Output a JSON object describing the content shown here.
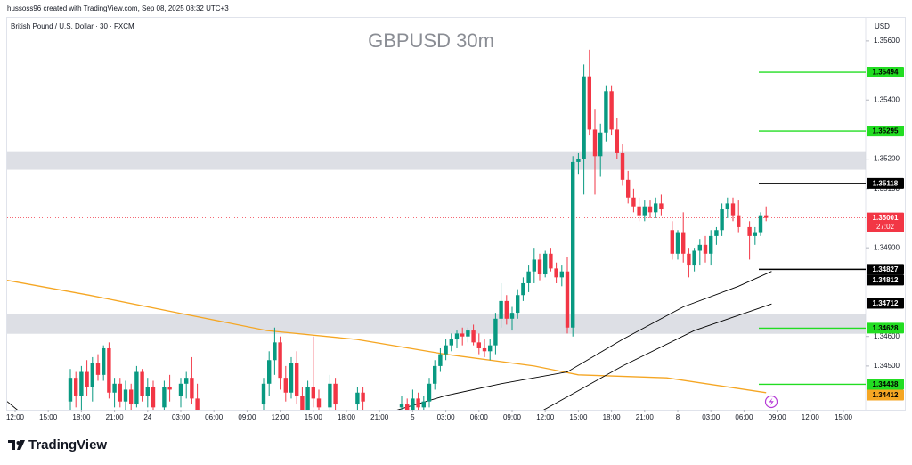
{
  "chart_data": {
    "type": "candlestick",
    "header": "hussoss96 created with TradingView.com, Sep 08, 2025 08:32 UTC+3",
    "subtitle": "British Pound / U.S. Dollar · 30 · FXCM",
    "title": "GBPUSD 30m",
    "currency": "USD",
    "brand": "TradingView",
    "up_color": "#089981",
    "down_color": "#f23645",
    "xlim": [
      -1.45,
      154.03
    ],
    "ylim": [
      1.34352,
      1.35678
    ],
    "yticks": [
      {
        "value": 1.356,
        "label": "1.35600"
      },
      {
        "value": 1.354,
        "label": "1.35400"
      },
      {
        "value": 1.352,
        "label": "1.35200"
      },
      {
        "value": 1.351,
        "label": "1.35100"
      },
      {
        "value": 1.349,
        "label": "1.34900"
      },
      {
        "value": 1.346,
        "label": "1.34600"
      },
      {
        "value": 1.345,
        "label": "1.34500"
      }
    ],
    "xticks": [
      {
        "value": 0,
        "label": "12:00"
      },
      {
        "value": 6,
        "label": "15:00"
      },
      {
        "value": 12,
        "label": "18:00"
      },
      {
        "value": 18,
        "label": "21:00"
      },
      24,
      {
        "value": 30,
        "label": "03:00"
      },
      {
        "value": 36,
        "label": "06:00"
      },
      {
        "value": 42,
        "label": "09:00"
      },
      {
        "value": 48,
        "label": "12:00"
      },
      {
        "value": 54,
        "label": "15:00"
      },
      {
        "value": 60,
        "label": "18:00"
      },
      {
        "value": 66,
        "label": "21:00"
      },
      {
        "value": 72,
        "label": "5"
      },
      {
        "value": 78,
        "label": "03:00"
      },
      {
        "value": 84,
        "label": "06:00"
      },
      {
        "value": 90,
        "label": "09:00"
      },
      {
        "value": 96,
        "label": "12:00"
      },
      {
        "value": 102,
        "label": "15:00"
      },
      {
        "value": 108,
        "label": "18:00"
      },
      {
        "value": 114,
        "label": "21:00"
      },
      {
        "value": 120,
        "label": "8"
      },
      {
        "value": 126,
        "label": "03:00"
      },
      {
        "value": 132,
        "label": "06:00"
      },
      {
        "value": 138,
        "label": "09:00"
      },
      {
        "value": 144,
        "label": "12:00"
      },
      {
        "value": 150,
        "label": "15:00"
      }
    ],
    "x": [
      10,
      11,
      12,
      13,
      14,
      15,
      16,
      17,
      18,
      19,
      20,
      21,
      22,
      23,
      24,
      25,
      27,
      28,
      30,
      31,
      32,
      33,
      45,
      46,
      47,
      48,
      49,
      50,
      51,
      52,
      53,
      54,
      55,
      57,
      58,
      62,
      63,
      70,
      71,
      72,
      73,
      74,
      75,
      76,
      77,
      78,
      79,
      80,
      81,
      82,
      83,
      84,
      85,
      86,
      87,
      88,
      89,
      90,
      91,
      92,
      93,
      94,
      95,
      96,
      97,
      98,
      99,
      100,
      101,
      102,
      103,
      104,
      105,
      106,
      107,
      108,
      109,
      110,
      111,
      112,
      113,
      114,
      115,
      116,
      117,
      119,
      120,
      121,
      122,
      123,
      124,
      125,
      126,
      127,
      128,
      129,
      130,
      131,
      133,
      134,
      135,
      136
    ],
    "open": [
      1.3438,
      1.3446,
      1.344,
      1.3448,
      1.3443,
      1.3451,
      1.3447,
      1.3456,
      1.3441,
      1.3444,
      1.3438,
      1.3442,
      1.3437,
      1.3448,
      1.344,
      1.3443,
      1.3436,
      1.3443,
      1.344,
      1.3444,
      1.3446,
      1.3439,
      1.3437,
      1.3444,
      1.3452,
      1.3458,
      1.3446,
      1.3441,
      1.3451,
      1.344,
      1.3435,
      1.3443,
      1.3439,
      1.3436,
      1.3444,
      1.3437,
      1.3441,
      1.3436,
      1.3437,
      1.3435,
      1.3439,
      1.3436,
      1.3438,
      1.3444,
      1.345,
      1.3454,
      1.3457,
      1.3459,
      1.3461,
      1.346,
      1.3462,
      1.3458,
      1.3456,
      1.3455,
      1.3457,
      1.3466,
      1.3472,
      1.3466,
      1.3468,
      1.3474,
      1.3478,
      1.3482,
      1.3486,
      1.3481,
      1.3488,
      1.3483,
      1.348,
      1.3482,
      1.3463,
      1.3519,
      1.352,
      1.3548,
      1.353,
      1.3521,
      1.3529,
      1.3543,
      1.353,
      1.3522,
      1.3513,
      1.3507,
      1.3504,
      1.3501,
      1.3504,
      1.3502,
      1.3505,
      1.3496,
      1.3488,
      1.3495,
      1.3488,
      1.3484,
      1.3489,
      1.3491,
      1.3488,
      1.3494,
      1.3496,
      1.3503,
      1.3505,
      1.3501,
      1.3497,
      1.3494,
      1.3495,
      1.3501
    ],
    "high": [
      1.3449,
      1.3448,
      1.345,
      1.3452,
      1.3453,
      1.3454,
      1.3457,
      1.3458,
      1.3446,
      1.3446,
      1.3445,
      1.3444,
      1.345,
      1.3449,
      1.3446,
      1.3445,
      1.3445,
      1.3447,
      1.3446,
      1.3448,
      1.3453,
      1.3444,
      1.3446,
      1.3455,
      1.3463,
      1.346,
      1.345,
      1.3453,
      1.3455,
      1.3443,
      1.3445,
      1.346,
      1.3442,
      1.3447,
      1.3446,
      1.3443,
      1.3443,
      1.344,
      1.3439,
      1.3442,
      1.3441,
      1.344,
      1.3446,
      1.3452,
      1.3456,
      1.3459,
      1.3461,
      1.3462,
      1.3463,
      1.3463,
      1.3464,
      1.3461,
      1.3459,
      1.3459,
      1.3468,
      1.3478,
      1.3474,
      1.347,
      1.3476,
      1.348,
      1.3484,
      1.349,
      1.3488,
      1.3489,
      1.349,
      1.3485,
      1.3484,
      1.3487,
      1.3521,
      1.3522,
      1.3552,
      1.3557,
      1.3537,
      1.3532,
      1.3545,
      1.3545,
      1.3534,
      1.3525,
      1.3516,
      1.351,
      1.3507,
      1.3506,
      1.3506,
      1.3507,
      1.3508,
      1.3499,
      1.3496,
      1.3502,
      1.349,
      1.349,
      1.3493,
      1.3494,
      1.3496,
      1.3497,
      1.3505,
      1.3507,
      1.3507,
      1.3506,
      1.3499,
      1.3497,
      1.3502,
      1.3504
    ],
    "low": [
      1.3433,
      1.3436,
      1.3435,
      1.344,
      1.3438,
      1.3445,
      1.3445,
      1.3439,
      1.3436,
      1.3436,
      1.3433,
      1.3434,
      1.3436,
      1.3438,
      1.3436,
      1.3434,
      1.3433,
      1.3438,
      1.3436,
      1.3439,
      1.3437,
      1.3433,
      1.3434,
      1.344,
      1.3447,
      1.3442,
      1.3438,
      1.3439,
      1.3437,
      1.3432,
      1.3433,
      1.3436,
      1.3433,
      1.3432,
      1.3434,
      1.3434,
      1.3435,
      1.3432,
      1.3433,
      1.3434,
      1.3434,
      1.3433,
      1.3436,
      1.3442,
      1.3448,
      1.3452,
      1.3455,
      1.3456,
      1.3457,
      1.3458,
      1.3457,
      1.3454,
      1.3453,
      1.3452,
      1.3454,
      1.3463,
      1.3464,
      1.3462,
      1.3466,
      1.3472,
      1.3475,
      1.3478,
      1.3479,
      1.348,
      1.3482,
      1.3478,
      1.3477,
      1.3461,
      1.346,
      1.3515,
      1.3508,
      1.3528,
      1.3508,
      1.3514,
      1.3526,
      1.3528,
      1.352,
      1.3511,
      1.3505,
      1.3502,
      1.3499,
      1.3499,
      1.35,
      1.35,
      1.3501,
      1.3486,
      1.3486,
      1.3485,
      1.348,
      1.3482,
      1.3484,
      1.3485,
      1.3484,
      1.3491,
      1.3494,
      1.35,
      1.3499,
      1.3495,
      1.3486,
      1.3491,
      1.3494,
      1.3499
    ],
    "close": [
      1.3446,
      1.344,
      1.3448,
      1.3443,
      1.3451,
      1.3447,
      1.3456,
      1.3441,
      1.3444,
      1.3438,
      1.3442,
      1.3437,
      1.3448,
      1.344,
      1.3443,
      1.3436,
      1.3443,
      1.3442,
      1.3444,
      1.3446,
      1.3439,
      1.3435,
      1.3444,
      1.3452,
      1.3458,
      1.3446,
      1.3441,
      1.3451,
      1.344,
      1.3435,
      1.3443,
      1.3439,
      1.3436,
      1.3444,
      1.3437,
      1.3441,
      1.3438,
      1.3437,
      1.3435,
      1.3439,
      1.3436,
      1.3438,
      1.3444,
      1.345,
      1.3454,
      1.3457,
      1.3459,
      1.3461,
      1.346,
      1.3462,
      1.3458,
      1.3456,
      1.3455,
      1.3457,
      1.3466,
      1.3472,
      1.3466,
      1.3468,
      1.3474,
      1.3478,
      1.3482,
      1.3486,
      1.3481,
      1.3488,
      1.3483,
      1.348,
      1.3482,
      1.3463,
      1.3519,
      1.352,
      1.3548,
      1.353,
      1.3521,
      1.3529,
      1.3543,
      1.353,
      1.3522,
      1.3513,
      1.3507,
      1.3504,
      1.3501,
      1.3504,
      1.3502,
      1.3505,
      1.3503,
      1.3488,
      1.3495,
      1.3488,
      1.3484,
      1.3489,
      1.3491,
      1.3488,
      1.3494,
      1.3496,
      1.3503,
      1.3505,
      1.3501,
      1.3497,
      1.3494,
      1.3495,
      1.3501,
      1.35001
    ],
    "overlays": [
      {
        "color": "#f5a623",
        "x": [
          -1.45,
          13.4,
          29.5,
          45.6,
          61.8,
          77.9,
          94,
          102,
          118,
          136
        ],
        "values": [
          1.3479,
          1.3474,
          1.3468,
          1.3462,
          1.3459,
          1.3454,
          1.345,
          1.3447,
          1.3446,
          1.3441
        ]
      },
      {
        "color": "#000000",
        "x": [
          69,
          78,
          88,
          100,
          110,
          121,
          131,
          137
        ],
        "values": [
          1.3435,
          1.344,
          1.3444,
          1.3448,
          1.3459,
          1.347,
          1.3477,
          1.3482
        ]
      },
      {
        "color": "#000000",
        "x": [
          -1.45,
          0.5,
          50,
          95.6,
          110,
          123,
          137
        ],
        "values": [
          1.3438,
          1.3435,
          null,
          1.3435,
          1.345,
          1.3462,
          1.3471
        ]
      }
    ],
    "zones": [
      [
        1.35164,
        1.35224
      ],
      [
        1.34609,
        1.34676
      ]
    ],
    "zone_color": "#d1d4dc",
    "levels": [
      {
        "value": 1.35494,
        "color": "#22dd22",
        "line": true
      },
      {
        "value": 1.35295,
        "color": "#22dd22",
        "line": true
      },
      {
        "value": 1.35118,
        "color": "#000000",
        "line": true
      },
      {
        "value": 1.34827,
        "color": "#000000",
        "line": true
      },
      {
        "value": 1.34812,
        "color": "#000000",
        "line": false
      },
      {
        "value": 1.34712,
        "color": "#000000",
        "line": false
      },
      {
        "value": 1.34628,
        "color": "#22dd22",
        "line": true
      },
      {
        "value": 1.34438,
        "color": "#22dd22",
        "line": true
      },
      {
        "value": 1.34412,
        "color": "#f5a623",
        "line": false
      }
    ],
    "last_price": {
      "value": 1.35001,
      "countdown": "27:02",
      "color": "#f23645"
    }
  }
}
